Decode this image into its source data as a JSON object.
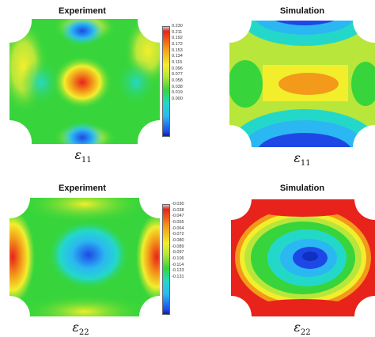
{
  "top_row": {
    "experiment": {
      "title": "Experiment",
      "strain_symbol": "ε",
      "strain_index": "11",
      "colorbar": {
        "ticks": [
          "0.230",
          "0.211",
          "0.192",
          "0.172",
          "0.153",
          "0.134",
          "0.115",
          "0.096",
          "0.077",
          "0.058",
          "0.038",
          "0.019",
          "0.000"
        ]
      }
    },
    "simulation": {
      "title": "Simulation",
      "strain_symbol": "ε",
      "strain_index": "11"
    }
  },
  "bottom_row": {
    "experiment": {
      "title": "Experiment",
      "strain_symbol": "ε",
      "strain_index": "22",
      "colorbar": {
        "ticks": [
          "-0.030",
          "-0.038",
          "-0.047",
          "-0.055",
          "-0.064",
          "-0.072",
          "-0.080",
          "-0.089",
          "-0.097",
          "-0.106",
          "-0.114",
          "-0.123",
          "-0.131"
        ]
      }
    },
    "simulation": {
      "title": "Simulation",
      "strain_symbol": "ε",
      "strain_index": "22"
    }
  },
  "colors": {
    "red": "#e8231b",
    "orange": "#f39a1a",
    "yellow": "#f2ee2c",
    "yellow_green": "#b8e63b",
    "green": "#37d53b",
    "cyan": "#24d8c9",
    "light_blue": "#2bb7f2",
    "blue": "#1e48e6"
  }
}
